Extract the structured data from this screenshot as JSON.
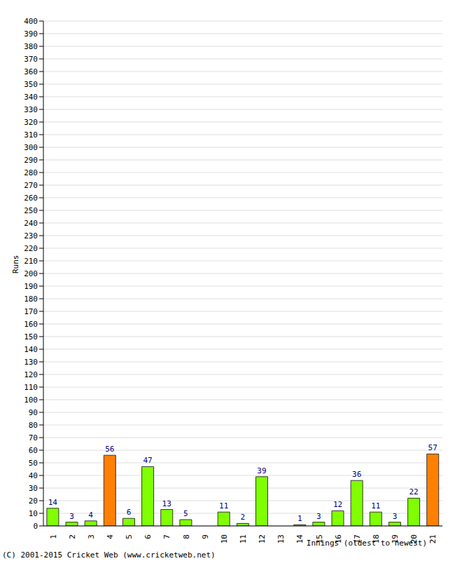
{
  "chart_data": {
    "type": "bar",
    "categories": [
      "1",
      "2",
      "3",
      "4",
      "5",
      "6",
      "7",
      "8",
      "9",
      "10",
      "11",
      "12",
      "13",
      "14",
      "15",
      "16",
      "17",
      "18",
      "19",
      "20",
      "21"
    ],
    "values": [
      14,
      3,
      4,
      56,
      6,
      47,
      13,
      5,
      0,
      11,
      2,
      39,
      0,
      1,
      3,
      12,
      36,
      11,
      3,
      22,
      57
    ],
    "colors": [
      "#80ff00",
      "#80ff00",
      "#80ff00",
      "#ff8000",
      "#80ff00",
      "#80ff00",
      "#80ff00",
      "#80ff00",
      "#80ff00",
      "#80ff00",
      "#80ff00",
      "#80ff00",
      "#80ff00",
      "#80ff00",
      "#80ff00",
      "#80ff00",
      "#80ff00",
      "#80ff00",
      "#80ff00",
      "#80ff00",
      "#ff8000"
    ],
    "y_label": "Runs",
    "x_label": "Innings (oldest to newest)",
    "annotations": [
      "(C) 2001-2015 Cricket Web (www.cricketweb.net)"
    ],
    "ylim": [
      0,
      400
    ],
    "yticks": [
      0,
      10,
      20,
      30,
      40,
      50,
      60,
      70,
      80,
      90,
      100,
      110,
      120,
      130,
      140,
      150,
      160,
      170,
      180,
      190,
      200,
      210,
      220,
      230,
      240,
      250,
      260,
      270,
      280,
      290,
      300,
      310,
      320,
      330,
      340,
      350,
      360,
      370,
      380,
      390,
      400
    ],
    "grid": true,
    "data_labels": true
  }
}
